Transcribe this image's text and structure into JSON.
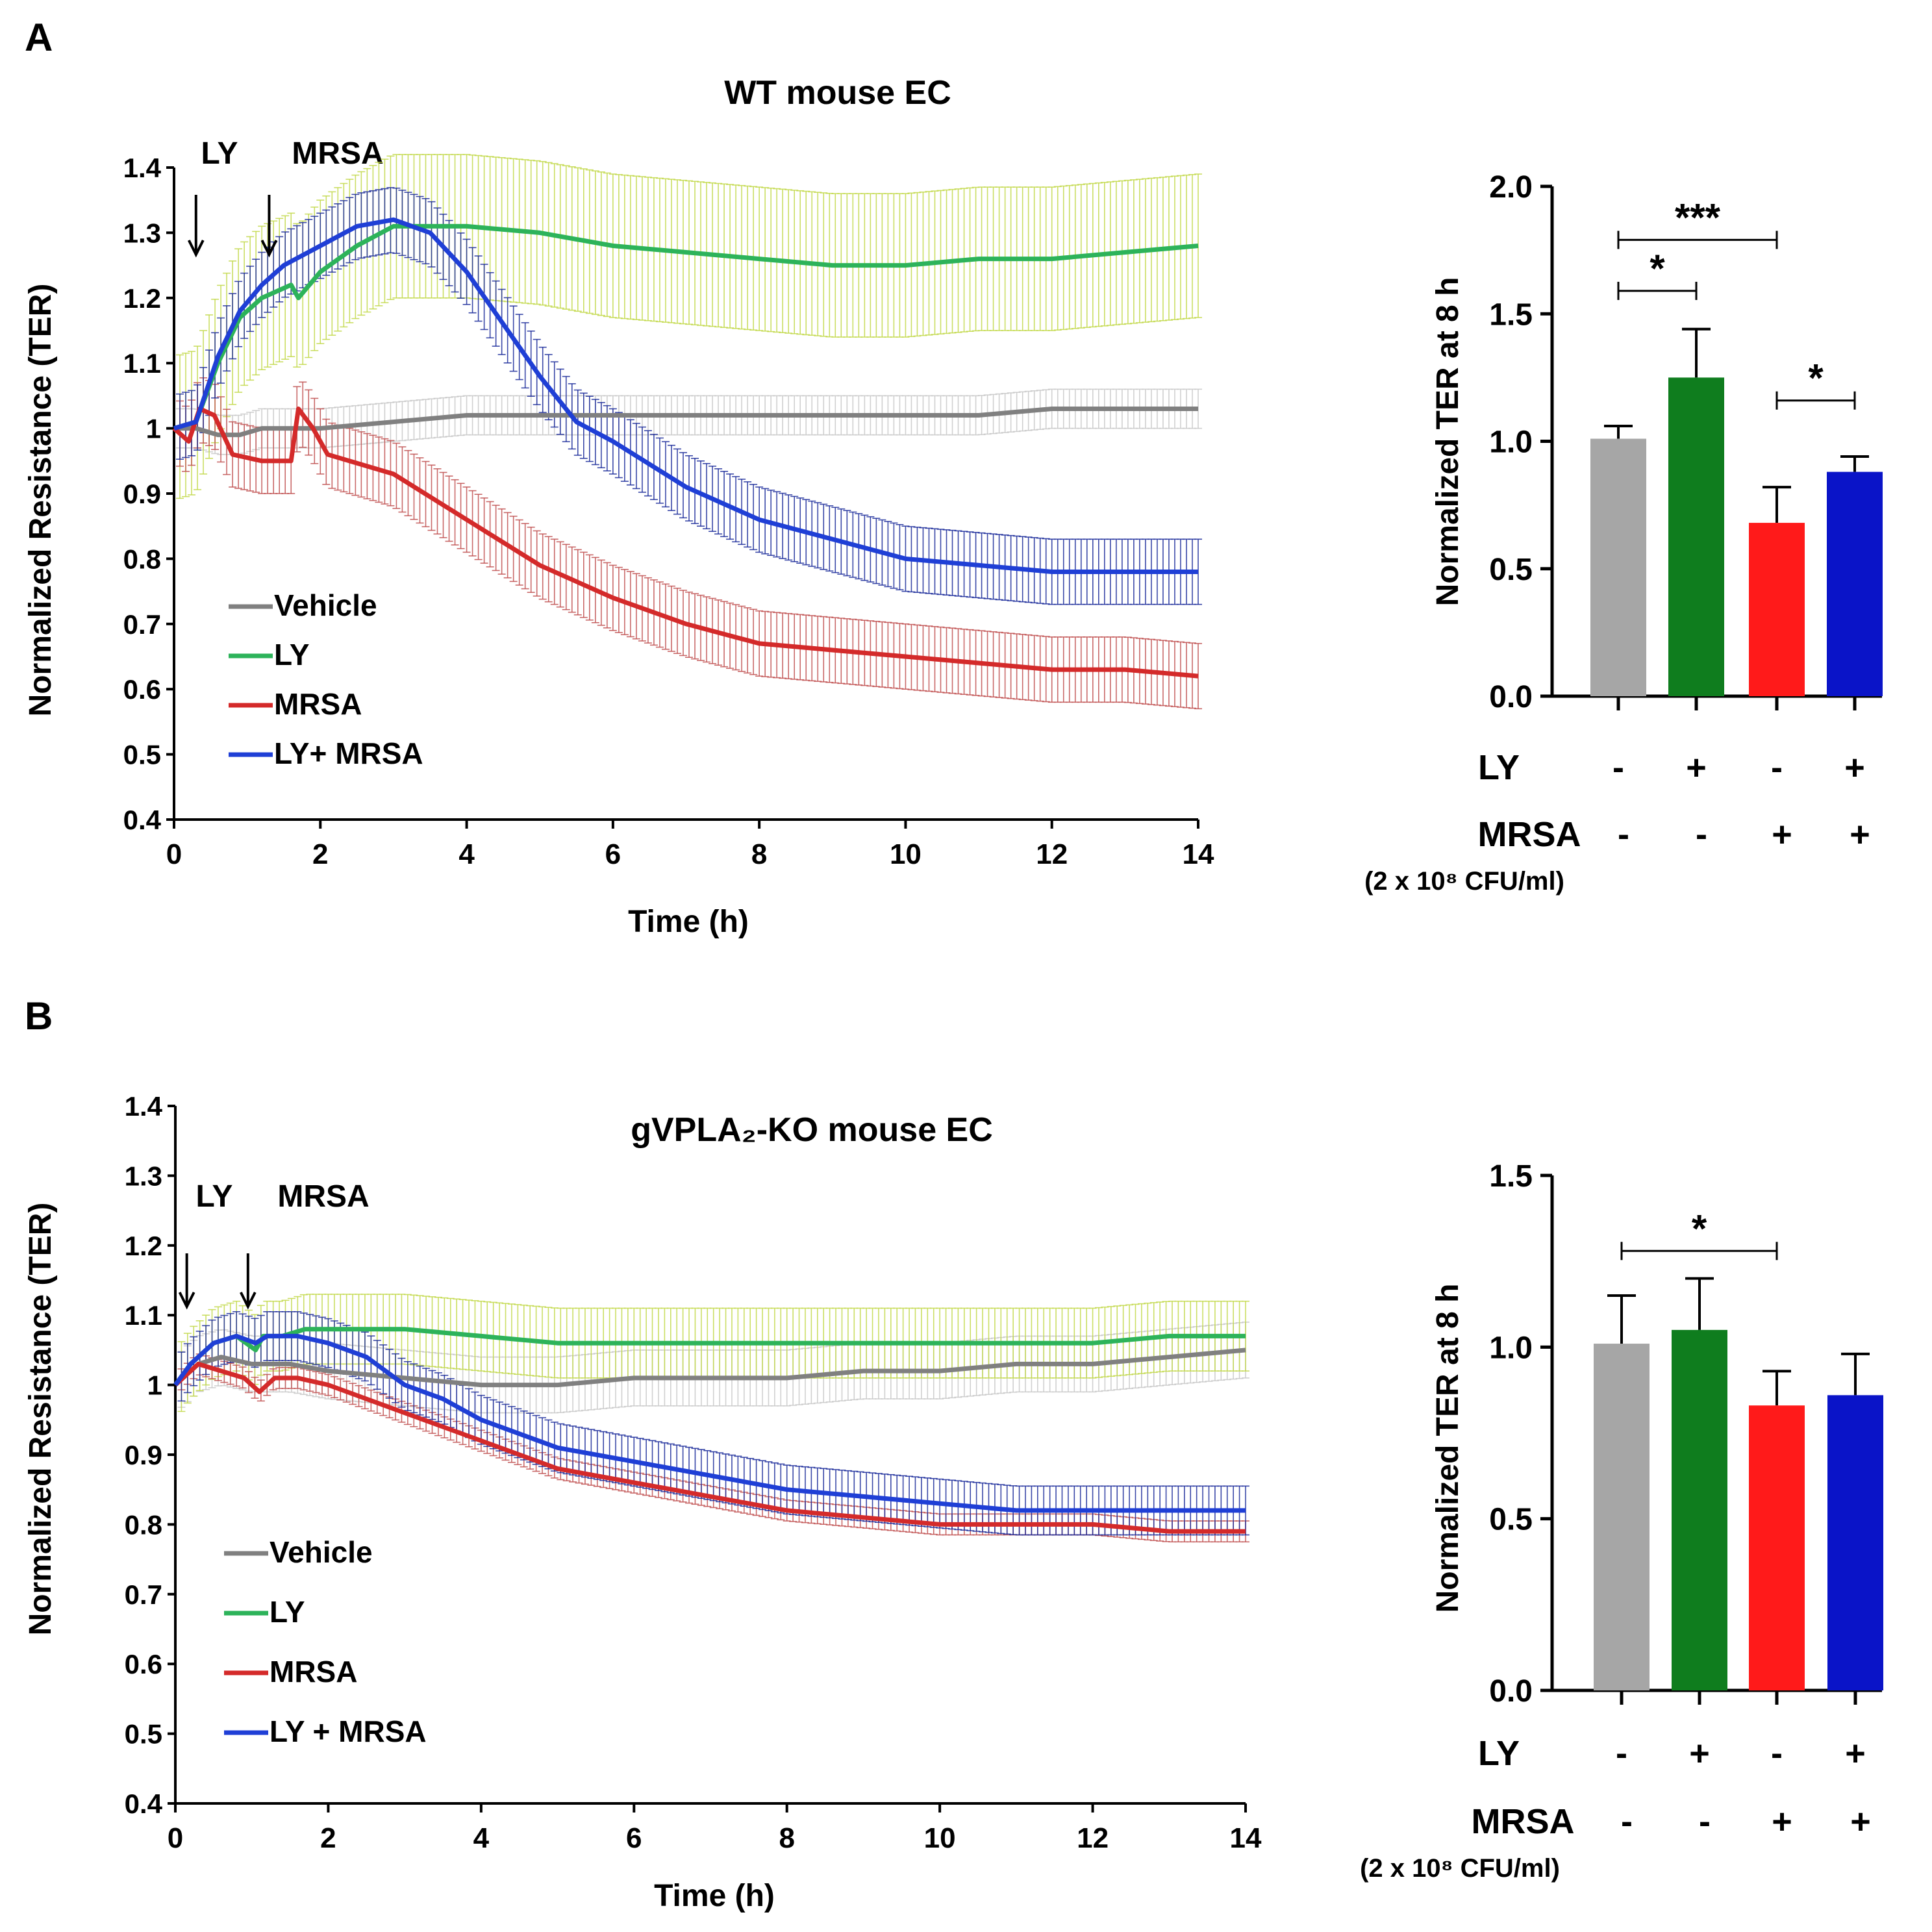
{
  "figure": {
    "panel_labels": [
      "A",
      "B"
    ]
  },
  "chart_data": [
    {
      "id": "A-line",
      "type": "line",
      "title": "WT mouse EC",
      "xlabel": "Time (h)",
      "ylabel": "Normalized Resistance (TER)",
      "xlim": [
        0,
        14
      ],
      "ylim": [
        0.4,
        1.4
      ],
      "x_ticks": [
        "0",
        "2",
        "4",
        "6",
        "8",
        "10",
        "12",
        "14"
      ],
      "y_ticks": [
        "0.4",
        "0.5",
        "0.6",
        "0.7",
        "0.8",
        "0.9",
        "1",
        "1.1",
        "1.2",
        "1.3",
        "1.4"
      ],
      "annotations": [
        {
          "text": "LY",
          "x": 0.3
        },
        {
          "text": "MRSA",
          "x": 1.3
        }
      ],
      "series": [
        {
          "name": "Vehicle",
          "color": "#808080",
          "band_color": "#c8c8c8",
          "points": [
            [
              0,
              1.0
            ],
            [
              0.3,
              1.0
            ],
            [
              0.6,
              0.99
            ],
            [
              0.9,
              0.99
            ],
            [
              1.2,
              1.0
            ],
            [
              1.6,
              1.0
            ],
            [
              2.0,
              1.0
            ],
            [
              3.0,
              1.01
            ],
            [
              4.0,
              1.02
            ],
            [
              5.0,
              1.02
            ],
            [
              6.0,
              1.02
            ],
            [
              7.0,
              1.02
            ],
            [
              8.0,
              1.02
            ],
            [
              9.0,
              1.02
            ],
            [
              10.0,
              1.02
            ],
            [
              11.0,
              1.02
            ],
            [
              12.0,
              1.03
            ],
            [
              13.0,
              1.03
            ],
            [
              14.0,
              1.03
            ]
          ],
          "err": 0.03
        },
        {
          "name": "LY",
          "color": "#2db35a",
          "band_color": "#c2d94a",
          "points": [
            [
              0,
              1.0
            ],
            [
              0.3,
              1.01
            ],
            [
              0.6,
              1.1
            ],
            [
              0.9,
              1.17
            ],
            [
              1.2,
              1.2
            ],
            [
              1.6,
              1.22
            ],
            [
              1.7,
              1.2
            ],
            [
              2.0,
              1.24
            ],
            [
              2.5,
              1.28
            ],
            [
              3.0,
              1.31
            ],
            [
              4.0,
              1.31
            ],
            [
              5.0,
              1.3
            ],
            [
              6.0,
              1.28
            ],
            [
              7.0,
              1.27
            ],
            [
              8.0,
              1.26
            ],
            [
              9.0,
              1.25
            ],
            [
              10.0,
              1.25
            ],
            [
              11.0,
              1.26
            ],
            [
              12.0,
              1.26
            ],
            [
              13.0,
              1.27
            ],
            [
              14.0,
              1.28
            ]
          ],
          "err": 0.11
        },
        {
          "name": "MRSA",
          "color": "#d42a2a",
          "band_color": "#c05050",
          "points": [
            [
              0,
              1.0
            ],
            [
              0.2,
              0.98
            ],
            [
              0.35,
              1.03
            ],
            [
              0.55,
              1.02
            ],
            [
              0.8,
              0.96
            ],
            [
              1.2,
              0.95
            ],
            [
              1.6,
              0.95
            ],
            [
              1.7,
              1.03
            ],
            [
              1.9,
              1.0
            ],
            [
              2.1,
              0.96
            ],
            [
              3.0,
              0.93
            ],
            [
              4.0,
              0.86
            ],
            [
              5.0,
              0.79
            ],
            [
              6.0,
              0.74
            ],
            [
              7.0,
              0.7
            ],
            [
              8.0,
              0.67
            ],
            [
              9.0,
              0.66
            ],
            [
              10.0,
              0.65
            ],
            [
              11.0,
              0.64
            ],
            [
              12.0,
              0.63
            ],
            [
              13.0,
              0.63
            ],
            [
              14.0,
              0.62
            ]
          ],
          "err": 0.05
        },
        {
          "name": "LY+ MRSA",
          "color": "#1f3fd6",
          "band_color": "#1a2a9a",
          "points": [
            [
              0,
              1.0
            ],
            [
              0.3,
              1.01
            ],
            [
              0.6,
              1.11
            ],
            [
              0.9,
              1.18
            ],
            [
              1.2,
              1.22
            ],
            [
              1.5,
              1.25
            ],
            [
              2.0,
              1.28
            ],
            [
              2.5,
              1.31
            ],
            [
              3.0,
              1.32
            ],
            [
              3.5,
              1.3
            ],
            [
              4.0,
              1.24
            ],
            [
              4.5,
              1.16
            ],
            [
              5.0,
              1.08
            ],
            [
              5.5,
              1.01
            ],
            [
              6.0,
              0.98
            ],
            [
              7.0,
              0.91
            ],
            [
              8.0,
              0.86
            ],
            [
              9.0,
              0.83
            ],
            [
              10.0,
              0.8
            ],
            [
              11.0,
              0.79
            ],
            [
              12.0,
              0.78
            ],
            [
              13.0,
              0.78
            ],
            [
              14.0,
              0.78
            ]
          ],
          "err": 0.05
        }
      ]
    },
    {
      "id": "A-bar",
      "type": "bar",
      "ylabel": "Normalized TER at 8 h",
      "ylim": [
        0.0,
        2.0
      ],
      "y_ticks": [
        "0.0",
        "0.5",
        "1.0",
        "1.5",
        "2.0"
      ],
      "categories": [
        "Vehicle",
        "LY",
        "MRSA",
        "LY + MRSA"
      ],
      "values": [
        1.01,
        1.25,
        0.68,
        0.88
      ],
      "errors": [
        0.05,
        0.19,
        0.14,
        0.06
      ],
      "colors": [
        "#a6a6a6",
        "#0f7d1e",
        "#ff1a1a",
        "#0a14c8"
      ],
      "row_labels": [
        "LY",
        "MRSA"
      ],
      "row_note": "(2 x 10⁸ CFU/ml)",
      "ly_signs": [
        "-",
        "+",
        "-",
        "+"
      ],
      "mrsa_signs": [
        "-",
        "-",
        "+",
        "+"
      ],
      "significance": [
        {
          "from": 0,
          "to": 2,
          "label": "***",
          "y": 1.79
        },
        {
          "from": 0,
          "to": 1,
          "label": "*",
          "y": 1.59
        },
        {
          "from": 2,
          "to": 3,
          "label": "*",
          "y": 1.16
        }
      ]
    },
    {
      "id": "B-line",
      "type": "line",
      "title": "gVPLA₂-KO mouse EC",
      "xlabel": "Time (h)",
      "ylabel": "Normalized Resistance (TER)",
      "xlim": [
        0,
        14
      ],
      "ylim": [
        0.4,
        1.4
      ],
      "x_ticks": [
        "0",
        "2",
        "4",
        "6",
        "8",
        "10",
        "12",
        "14"
      ],
      "y_ticks": [
        "0.4",
        "0.5",
        "0.6",
        "0.7",
        "0.8",
        "0.9",
        "1",
        "1.1",
        "1.2",
        "1.3",
        "1.4"
      ],
      "annotations": [
        {
          "text": "LY",
          "x": 0.15
        },
        {
          "text": "MRSA",
          "x": 0.95
        }
      ],
      "series": [
        {
          "name": "Vehicle",
          "color": "#808080",
          "band_color": "#c8c8c8",
          "points": [
            [
              0,
              1.0
            ],
            [
              0.3,
              1.03
            ],
            [
              0.6,
              1.04
            ],
            [
              1.0,
              1.03
            ],
            [
              1.5,
              1.03
            ],
            [
              2.0,
              1.02
            ],
            [
              3.0,
              1.01
            ],
            [
              4.0,
              1.0
            ],
            [
              5.0,
              1.0
            ],
            [
              6.0,
              1.01
            ],
            [
              7.0,
              1.01
            ],
            [
              8.0,
              1.01
            ],
            [
              9.0,
              1.02
            ],
            [
              10.0,
              1.02
            ],
            [
              11.0,
              1.03
            ],
            [
              12.0,
              1.03
            ],
            [
              13.0,
              1.04
            ],
            [
              14.0,
              1.05
            ]
          ],
          "err": 0.04
        },
        {
          "name": "LY",
          "color": "#2db35a",
          "band_color": "#c2d94a",
          "points": [
            [
              0,
              1.0
            ],
            [
              0.2,
              1.03
            ],
            [
              0.5,
              1.06
            ],
            [
              0.8,
              1.07
            ],
            [
              1.05,
              1.05
            ],
            [
              1.15,
              1.07
            ],
            [
              1.4,
              1.07
            ],
            [
              1.7,
              1.08
            ],
            [
              2.0,
              1.08
            ],
            [
              3.0,
              1.08
            ],
            [
              4.0,
              1.07
            ],
            [
              5.0,
              1.06
            ],
            [
              6.0,
              1.06
            ],
            [
              7.0,
              1.06
            ],
            [
              8.0,
              1.06
            ],
            [
              9.0,
              1.06
            ],
            [
              10.0,
              1.06
            ],
            [
              11.0,
              1.06
            ],
            [
              12.0,
              1.06
            ],
            [
              13.0,
              1.07
            ],
            [
              14.0,
              1.07
            ]
          ],
          "err": 0.05
        },
        {
          "name": "MRSA",
          "color": "#d42a2a",
          "band_color": "#c05050",
          "points": [
            [
              0,
              1.0
            ],
            [
              0.3,
              1.03
            ],
            [
              0.6,
              1.02
            ],
            [
              0.9,
              1.01
            ],
            [
              1.1,
              0.99
            ],
            [
              1.3,
              1.01
            ],
            [
              1.6,
              1.01
            ],
            [
              2.0,
              1.0
            ],
            [
              3.0,
              0.96
            ],
            [
              4.0,
              0.92
            ],
            [
              5.0,
              0.88
            ],
            [
              6.0,
              0.86
            ],
            [
              7.0,
              0.84
            ],
            [
              8.0,
              0.82
            ],
            [
              9.0,
              0.81
            ],
            [
              10.0,
              0.8
            ],
            [
              11.0,
              0.8
            ],
            [
              12.0,
              0.8
            ],
            [
              13.0,
              0.79
            ],
            [
              14.0,
              0.79
            ]
          ],
          "err": 0.015
        },
        {
          "name": "LY + MRSA",
          "color": "#1f3fd6",
          "band_color": "#1a2a9a",
          "points": [
            [
              0,
              1.0
            ],
            [
              0.2,
              1.03
            ],
            [
              0.5,
              1.06
            ],
            [
              0.8,
              1.07
            ],
            [
              1.05,
              1.06
            ],
            [
              1.2,
              1.07
            ],
            [
              1.6,
              1.07
            ],
            [
              2.0,
              1.06
            ],
            [
              2.5,
              1.04
            ],
            [
              3.0,
              1.0
            ],
            [
              3.5,
              0.98
            ],
            [
              4.0,
              0.95
            ],
            [
              5.0,
              0.91
            ],
            [
              6.0,
              0.89
            ],
            [
              7.0,
              0.87
            ],
            [
              8.0,
              0.85
            ],
            [
              9.0,
              0.84
            ],
            [
              10.0,
              0.83
            ],
            [
              11.0,
              0.82
            ],
            [
              12.0,
              0.82
            ],
            [
              13.0,
              0.82
            ],
            [
              14.0,
              0.82
            ]
          ],
          "err": 0.035
        }
      ]
    },
    {
      "id": "B-bar",
      "type": "bar",
      "ylabel": "Normalized TER at 8 h",
      "ylim": [
        0.0,
        1.5
      ],
      "y_ticks": [
        "0.0",
        "0.5",
        "1.0",
        "1.5"
      ],
      "categories": [
        "Vehicle",
        "LY",
        "MRSA",
        "LY + MRSA"
      ],
      "values": [
        1.01,
        1.05,
        0.83,
        0.86
      ],
      "errors": [
        0.14,
        0.15,
        0.1,
        0.12
      ],
      "colors": [
        "#a6a6a6",
        "#0f7d1e",
        "#ff1a1a",
        "#0a14c8"
      ],
      "row_labels": [
        "LY",
        "MRSA"
      ],
      "row_note": "(2 x 10⁸ CFU/ml)",
      "ly_signs": [
        "-",
        "+",
        "-",
        "+"
      ],
      "mrsa_signs": [
        "-",
        "-",
        "+",
        "+"
      ],
      "significance": [
        {
          "from": 0,
          "to": 2,
          "label": "*",
          "y": 1.28
        }
      ]
    }
  ]
}
